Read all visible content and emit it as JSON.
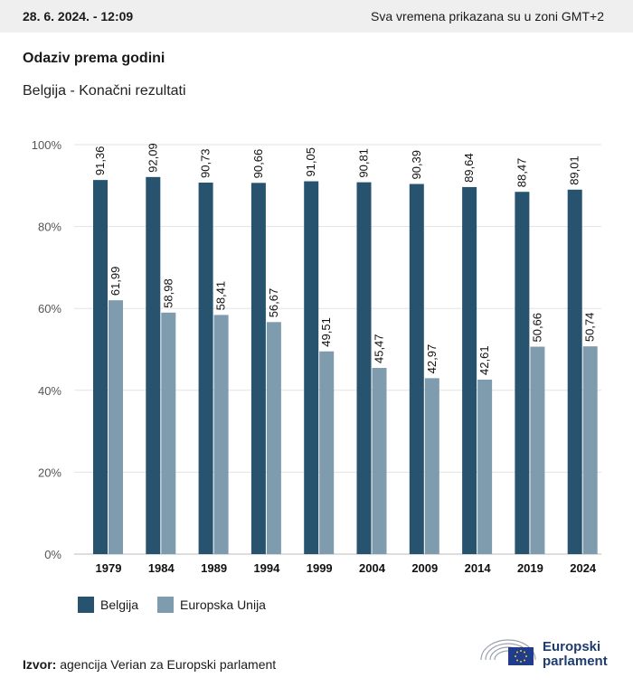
{
  "header": {
    "date": "28. 6. 2024. - 12:09",
    "timezone_note": "Sva vremena prikazana su u zoni GMT+2"
  },
  "title": "Odaziv prema godini",
  "subtitle": "Belgija - Konačni rezultati",
  "chart_data": {
    "type": "bar",
    "categories": [
      "1979",
      "1984",
      "1989",
      "1994",
      "1999",
      "2004",
      "2009",
      "2014",
      "2019",
      "2024"
    ],
    "series": [
      {
        "name": "Belgija",
        "color": "#27536f",
        "values": [
          91.36,
          92.09,
          90.73,
          90.66,
          91.05,
          90.81,
          90.39,
          89.64,
          88.47,
          89.01
        ]
      },
      {
        "name": "Europska Unija",
        "color": "#7f9bae",
        "values": [
          61.99,
          58.98,
          58.41,
          56.67,
          49.51,
          45.47,
          42.97,
          42.61,
          50.66,
          50.74
        ]
      }
    ],
    "value_labels": {
      "Belgija": [
        "91,36",
        "92,09",
        "90,73",
        "90,66",
        "91,05",
        "90,81",
        "90,39",
        "89,64",
        "88,47",
        "89,01"
      ],
      "Europska Unija": [
        "61,99",
        "58,98",
        "58,41",
        "56,67",
        "49,51",
        "45,47",
        "42,97",
        "42,61",
        "50,66",
        "50,74"
      ]
    },
    "y_ticks": [
      0,
      20,
      40,
      60,
      80,
      100
    ],
    "y_tick_labels": [
      "0%",
      "20%",
      "40%",
      "60%",
      "80%",
      "100%"
    ],
    "ylim": [
      0,
      100
    ],
    "grid": true,
    "legend_position": "bottom-left"
  },
  "source": {
    "label": "Izvor:",
    "text": "agencija Verian za Europski parlament"
  },
  "logo": {
    "line1": "Europski",
    "line2": "parlament"
  }
}
